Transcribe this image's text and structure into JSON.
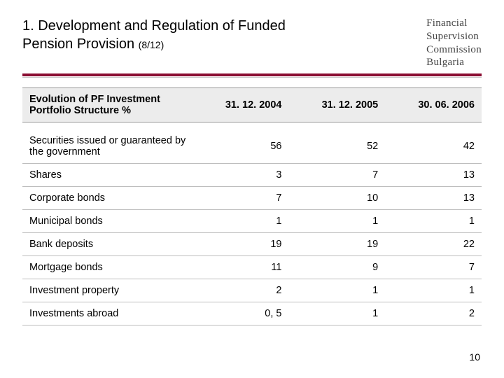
{
  "header": {
    "title_main": "1. Development and Regulation of Funded Pension Provision",
    "title_counter": "(8/12)",
    "org_lines": [
      "Financial",
      "Supervision",
      "Commission",
      "Bulgaria"
    ]
  },
  "rules": {
    "accent_color": "#8a0e32",
    "light_color": "#c9c9c9"
  },
  "table": {
    "header_bg": "#ececec",
    "border_color": "#bdbdbd",
    "columns": [
      "Evolution of PF Investment Portfolio Structure %",
      "31. 12. 2004",
      "31. 12. 2005",
      "30. 06. 2006"
    ],
    "rows": [
      [
        "Securities issued or guaranteed by the government",
        "56",
        "52",
        "42"
      ],
      [
        "Shares",
        "3",
        "7",
        "13"
      ],
      [
        "Corporate bonds",
        "7",
        "10",
        "13"
      ],
      [
        "Municipal bonds",
        "1",
        "1",
        "1"
      ],
      [
        "Bank deposits",
        "19",
        "19",
        "22"
      ],
      [
        "Mortgage bonds",
        "11",
        "9",
        "7"
      ],
      [
        "Investment property",
        "2",
        "1",
        "1"
      ],
      [
        "Investments abroad",
        "0, 5",
        "1",
        "2"
      ]
    ]
  },
  "page_number": "10"
}
